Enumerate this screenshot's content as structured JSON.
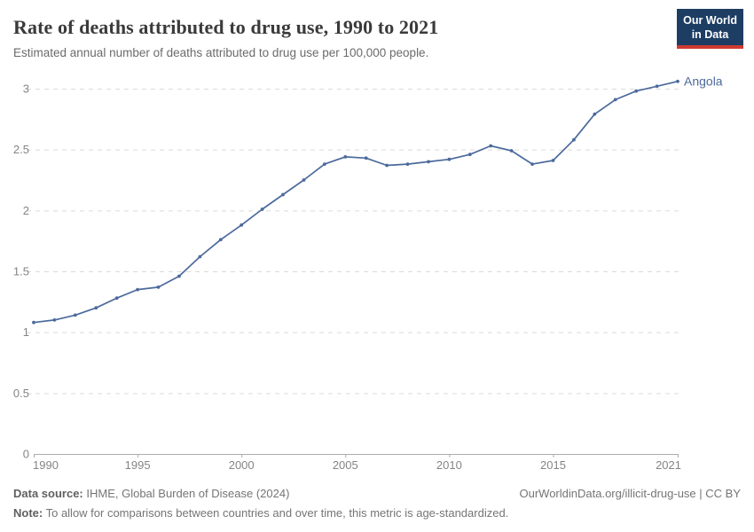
{
  "header": {
    "title": "Rate of deaths attributed to drug use, 1990 to 2021",
    "subtitle": "Estimated annual number of deaths attributed to drug use per 100,000 people.",
    "logo": {
      "line1": "Our World",
      "line2": "in Data",
      "bg_color": "#1d3d63",
      "accent_color": "#cf3b32"
    }
  },
  "chart_data": {
    "type": "line",
    "title": "Rate of deaths attributed to drug use, 1990 to 2021",
    "subtitle": "Estimated annual number of deaths attributed to drug use per 100,000 people.",
    "xlabel": "",
    "ylabel": "",
    "xlim": [
      1990,
      2021
    ],
    "ylim": [
      0,
      3
    ],
    "x_ticks": [
      1990,
      1995,
      2000,
      2005,
      2010,
      2015,
      2021
    ],
    "y_ticks": [
      0,
      0.5,
      1,
      1.5,
      2,
      2.5,
      3
    ],
    "grid": "horizontal-dashed",
    "legend_position": "end-of-line-label",
    "series": [
      {
        "name": "Angola",
        "color": "#4c6a9c",
        "x": [
          1990,
          1991,
          1992,
          1993,
          1994,
          1995,
          1996,
          1997,
          1998,
          1999,
          2000,
          2001,
          2002,
          2003,
          2004,
          2005,
          2006,
          2007,
          2008,
          2009,
          2010,
          2011,
          2012,
          2013,
          2014,
          2015,
          2016,
          2017,
          2018,
          2019,
          2020,
          2021
        ],
        "values": [
          1.08,
          1.1,
          1.14,
          1.2,
          1.28,
          1.35,
          1.37,
          1.46,
          1.62,
          1.76,
          1.88,
          2.01,
          2.13,
          2.25,
          2.38,
          2.44,
          2.43,
          2.37,
          2.38,
          2.4,
          2.42,
          2.46,
          2.53,
          2.49,
          2.38,
          2.41,
          2.58,
          2.79,
          2.91,
          2.98,
          3.02,
          3.06
        ]
      }
    ]
  },
  "colors": {
    "line": "#4c6a9c",
    "grid": "#dadada",
    "axis": "#adadad",
    "tick_label": "#858585"
  },
  "footer": {
    "source_label": "Data source:",
    "source_text": " IHME, Global Burden of Disease (2024)",
    "note_label": "Note:",
    "note_text": " To allow for comparisons between countries and over time, this metric is age-standardized.",
    "link": "OurWorldinData.org/illicit-drug-use | CC BY"
  }
}
